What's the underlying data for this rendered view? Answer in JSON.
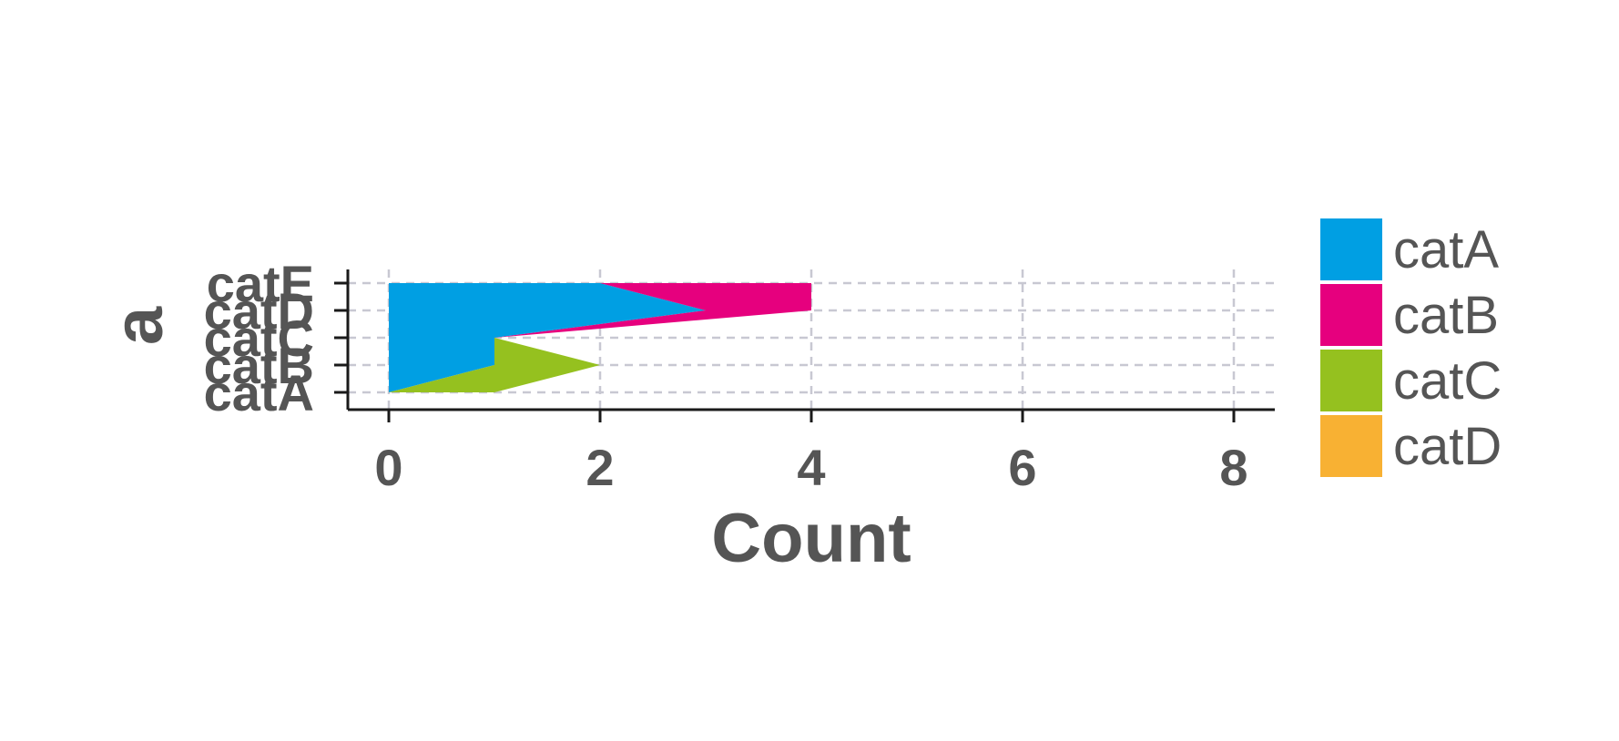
{
  "chart_data": {
    "type": "area",
    "orientation": "horizontal",
    "stacked": true,
    "xlabel": "Count",
    "ylabel": "a",
    "categories": [
      "catA",
      "catB",
      "catC",
      "catD",
      "catE"
    ],
    "xlim": [
      -0.2,
      8.3
    ],
    "xticks": [
      0,
      2,
      4,
      6,
      8
    ],
    "grid": true,
    "legend_position": "right",
    "series": [
      {
        "name": "catA",
        "color": "#009FE3",
        "values": [
          0,
          1,
          1,
          3,
          2
        ]
      },
      {
        "name": "catB",
        "color": "#E6007E",
        "values": [
          0,
          0,
          0,
          1,
          2
        ]
      },
      {
        "name": "catC",
        "color": "#95C11F",
        "values": [
          1,
          1,
          0,
          0,
          0
        ]
      },
      {
        "name": "catD",
        "color": "#F8B133",
        "values": [
          0,
          0,
          0,
          0,
          0
        ]
      }
    ]
  }
}
